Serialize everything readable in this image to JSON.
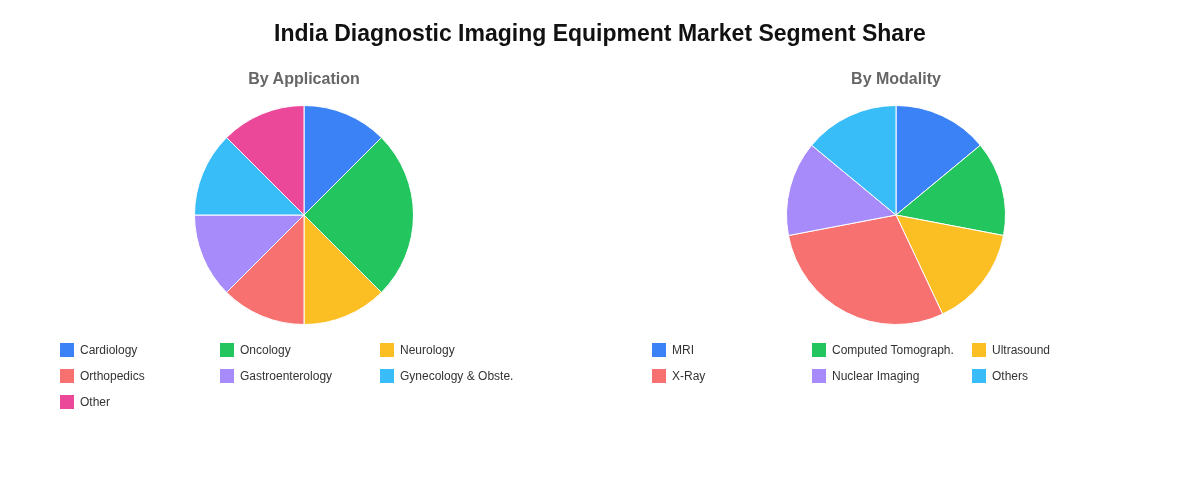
{
  "chart_data": [
    {
      "type": "pie",
      "title": "India Diagnostic Imaging Equipment Market Segment Share",
      "subtitle": "By Application",
      "legend": "bottom",
      "categories": [
        "Cardiology",
        "Oncology",
        "Neurology",
        "Orthopedics",
        "Gastroenterology",
        "Gynecology & Obste.",
        "Other"
      ],
      "values": [
        12.5,
        25,
        12.5,
        12.5,
        12.5,
        12.5,
        12.5
      ],
      "colors": [
        "#3b82f6",
        "#22c55e",
        "#fbbf24",
        "#f87171",
        "#a78bfa",
        "#38bdf8",
        "#ec4899"
      ]
    },
    {
      "type": "pie",
      "subtitle": "By Modality",
      "legend": "bottom",
      "categories": [
        "MRI",
        "Computed Tomograph.",
        "Ultrasound",
        "X-Ray",
        "Nuclear Imaging",
        "Others"
      ],
      "values": [
        14,
        14,
        15,
        29,
        14,
        14
      ],
      "colors": [
        "#3b82f6",
        "#22c55e",
        "#fbbf24",
        "#f87171",
        "#a78bfa",
        "#38bdf8"
      ]
    }
  ]
}
